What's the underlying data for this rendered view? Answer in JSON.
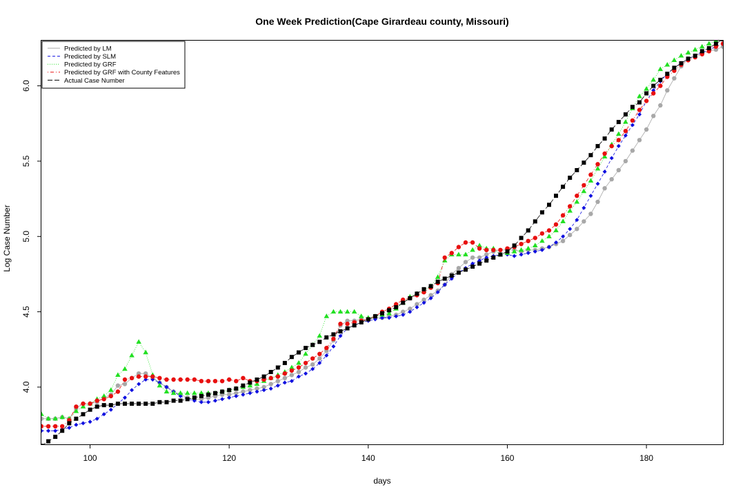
{
  "chart_data": {
    "type": "line",
    "title": "One Week Prediction(Cape Girardeau county, Missouri)",
    "xlabel": "days",
    "ylabel": "Log Case Number",
    "xlim": [
      93,
      191
    ],
    "ylim": [
      3.62,
      6.3
    ],
    "x_ticks": [
      100,
      120,
      140,
      160,
      180
    ],
    "y_ticks": [
      4.0,
      4.5,
      5.0,
      5.5,
      6.0
    ],
    "x_tick_labels": [
      "100",
      "120",
      "140",
      "160",
      "180"
    ],
    "y_tick_labels": [
      "4.0",
      "4.5",
      "5.0",
      "5.5",
      "6.0"
    ],
    "legend_position": "top-left",
    "x_start": 93,
    "series": [
      {
        "name": "Predicted by LM",
        "color": "#a8a8a8",
        "marker": "circle",
        "line": "solid",
        "values": [
          3.79,
          3.79,
          3.79,
          3.8,
          3.79,
          3.86,
          3.89,
          3.89,
          3.9,
          3.93,
          3.95,
          4.01,
          4.02,
          4.06,
          4.09,
          4.09,
          4.06,
          4.03,
          4.0,
          3.97,
          3.95,
          3.93,
          3.92,
          3.92,
          3.93,
          3.94,
          3.95,
          3.95,
          3.96,
          3.97,
          3.98,
          3.99,
          4.0,
          4.02,
          4.04,
          4.06,
          4.08,
          4.1,
          4.13,
          4.15,
          4.19,
          4.24,
          4.31,
          4.41,
          4.44,
          4.44,
          4.45,
          4.45,
          4.46,
          4.46,
          4.47,
          4.48,
          4.5,
          4.52,
          4.55,
          4.58,
          4.61,
          4.64,
          4.68,
          4.75,
          4.79,
          4.83,
          4.86,
          4.86,
          4.88,
          4.9,
          4.91,
          4.91,
          4.91,
          4.9,
          4.91,
          4.91,
          4.92,
          4.93,
          4.95,
          4.97,
          5.01,
          5.05,
          5.1,
          5.15,
          5.23,
          5.32,
          5.38,
          5.44,
          5.5,
          5.57,
          5.64,
          5.71,
          5.8,
          5.87,
          5.97,
          6.05,
          6.13,
          6.18,
          6.2,
          6.22,
          6.23,
          6.24,
          6.26,
          6.28,
          6.3,
          6.31,
          6.32
        ]
      },
      {
        "name": "Predicted by SLM",
        "color": "#1010e0",
        "marker": "diamond",
        "line": "dashed",
        "values": [
          3.71,
          3.71,
          3.71,
          3.72,
          3.73,
          3.75,
          3.76,
          3.77,
          3.79,
          3.82,
          3.85,
          3.89,
          3.93,
          3.98,
          4.02,
          4.05,
          4.05,
          4.03,
          4.0,
          3.97,
          3.94,
          3.92,
          3.91,
          3.9,
          3.9,
          3.91,
          3.92,
          3.93,
          3.94,
          3.95,
          3.96,
          3.97,
          3.98,
          3.99,
          4.01,
          4.03,
          4.04,
          4.07,
          4.09,
          4.12,
          4.16,
          4.21,
          4.27,
          4.34,
          4.39,
          4.41,
          4.43,
          4.44,
          4.45,
          4.46,
          4.46,
          4.47,
          4.48,
          4.5,
          4.53,
          4.56,
          4.59,
          4.63,
          4.68,
          4.72,
          4.76,
          4.79,
          4.82,
          4.84,
          4.86,
          4.87,
          4.88,
          4.88,
          4.87,
          4.88,
          4.89,
          4.9,
          4.91,
          4.93,
          4.96,
          5.0,
          5.05,
          5.11,
          5.19,
          5.27,
          5.35,
          5.43,
          5.52,
          5.6,
          5.67,
          5.74,
          5.81,
          5.9,
          5.97,
          6.03,
          6.08,
          6.12,
          6.15,
          6.18,
          6.2,
          6.22,
          6.24,
          6.26,
          6.28,
          6.3,
          6.31,
          6.32,
          6.33
        ]
      },
      {
        "name": "Predicted by GRF",
        "color": "#22e022",
        "marker": "triangle",
        "line": "dotted",
        "values": [
          3.82,
          3.79,
          3.79,
          3.8,
          3.79,
          3.84,
          3.87,
          3.89,
          3.92,
          3.94,
          3.98,
          4.08,
          4.12,
          4.21,
          4.3,
          4.23,
          4.08,
          4.01,
          3.97,
          3.96,
          3.96,
          3.96,
          3.96,
          3.96,
          3.96,
          3.96,
          3.97,
          3.98,
          3.99,
          4.0,
          4.01,
          4.02,
          4.04,
          4.06,
          4.08,
          4.1,
          4.13,
          4.16,
          4.22,
          4.28,
          4.34,
          4.47,
          4.5,
          4.5,
          4.5,
          4.5,
          4.47,
          4.46,
          4.47,
          4.48,
          4.49,
          4.52,
          4.56,
          4.6,
          4.62,
          4.64,
          4.67,
          4.73,
          4.84,
          4.88,
          4.88,
          4.88,
          4.91,
          4.94,
          4.92,
          4.92,
          4.88,
          4.89,
          4.9,
          4.91,
          4.92,
          4.94,
          4.97,
          5.0,
          5.04,
          5.1,
          5.17,
          5.23,
          5.3,
          5.37,
          5.45,
          5.53,
          5.61,
          5.68,
          5.76,
          5.85,
          5.93,
          5.98,
          6.04,
          6.11,
          6.14,
          6.17,
          6.2,
          6.22,
          6.24,
          6.26,
          6.28,
          6.3,
          6.31,
          6.32,
          6.33,
          6.34,
          6.34
        ]
      },
      {
        "name": "Predicted by GRF with County Features",
        "color": "#e81010",
        "marker": "circle",
        "line": "dotdash",
        "values": [
          3.74,
          3.74,
          3.74,
          3.74,
          3.78,
          3.87,
          3.89,
          3.89,
          3.91,
          3.92,
          3.94,
          3.97,
          4.05,
          4.06,
          4.07,
          4.07,
          4.07,
          4.06,
          4.05,
          4.05,
          4.05,
          4.05,
          4.05,
          4.04,
          4.04,
          4.04,
          4.04,
          4.05,
          4.04,
          4.06,
          4.04,
          4.04,
          4.05,
          4.06,
          4.07,
          4.09,
          4.11,
          4.13,
          4.16,
          4.19,
          4.22,
          4.26,
          4.32,
          4.42,
          4.42,
          4.43,
          4.44,
          4.45,
          4.47,
          4.5,
          4.52,
          4.55,
          4.58,
          4.59,
          4.61,
          4.63,
          4.66,
          4.69,
          4.86,
          4.89,
          4.93,
          4.96,
          4.96,
          4.92,
          4.91,
          4.91,
          4.91,
          4.92,
          4.93,
          4.95,
          4.97,
          4.99,
          5.02,
          5.04,
          5.08,
          5.14,
          5.2,
          5.27,
          5.34,
          5.41,
          5.48,
          5.55,
          5.6,
          5.64,
          5.7,
          5.77,
          5.84,
          5.9,
          5.95,
          6.0,
          6.06,
          6.1,
          6.14,
          6.17,
          6.19,
          6.21,
          6.23,
          6.26,
          6.28,
          6.3,
          6.31,
          6.32,
          6.33
        ]
      },
      {
        "name": "Actual Case Number",
        "color": "#000000",
        "marker": "square",
        "line": "longdash",
        "values": [
          3.61,
          3.64,
          3.67,
          3.71,
          3.76,
          3.79,
          3.82,
          3.85,
          3.87,
          3.88,
          3.88,
          3.89,
          3.89,
          3.89,
          3.89,
          3.89,
          3.89,
          3.9,
          3.9,
          3.91,
          3.91,
          3.92,
          3.93,
          3.94,
          3.95,
          3.96,
          3.97,
          3.98,
          3.99,
          4.01,
          4.03,
          4.05,
          4.07,
          4.1,
          4.13,
          4.16,
          4.2,
          4.23,
          4.26,
          4.28,
          4.3,
          4.33,
          4.35,
          4.37,
          4.39,
          4.41,
          4.43,
          4.45,
          4.47,
          4.49,
          4.51,
          4.53,
          4.56,
          4.59,
          4.62,
          4.65,
          4.67,
          4.7,
          4.72,
          4.74,
          4.76,
          4.78,
          4.8,
          4.82,
          4.84,
          4.86,
          4.88,
          4.9,
          4.94,
          4.99,
          5.04,
          5.1,
          5.16,
          5.21,
          5.27,
          5.33,
          5.39,
          5.44,
          5.49,
          5.54,
          5.6,
          5.65,
          5.71,
          5.76,
          5.81,
          5.86,
          5.89,
          5.95,
          6.0,
          6.04,
          6.08,
          6.12,
          6.15,
          6.18,
          6.2,
          6.23,
          6.25,
          6.28,
          6.31,
          6.32,
          6.33,
          6.34,
          6.35
        ]
      }
    ]
  }
}
